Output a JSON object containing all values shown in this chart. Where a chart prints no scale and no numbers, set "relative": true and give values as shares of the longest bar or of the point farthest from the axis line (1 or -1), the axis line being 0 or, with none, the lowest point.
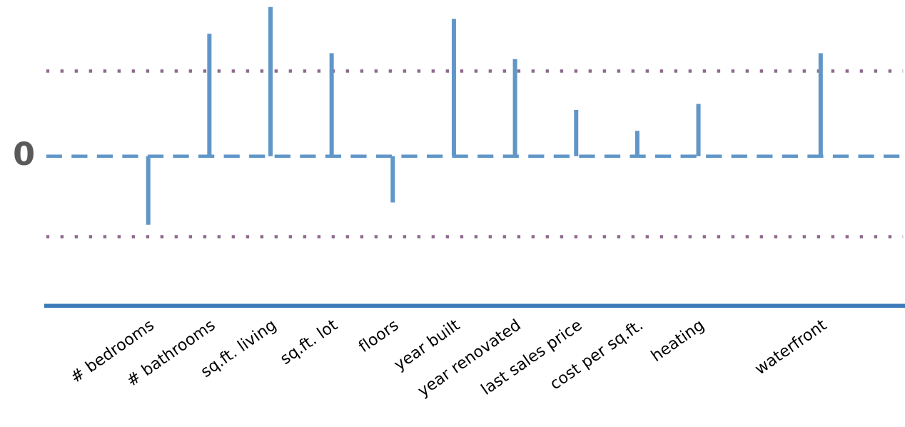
{
  "chart_data": {
    "type": "bar",
    "relative": true,
    "categories": [
      "# bedrooms",
      "# bathrooms",
      "sq.ft. living",
      "sq.ft. lot",
      "floors",
      "year built",
      "year renovated",
      "last sales price",
      "cost per sq.ft.",
      "heating",
      null,
      "waterfront"
    ],
    "values": [
      -0.46,
      0.82,
      1,
      0.69,
      -0.31,
      0.92,
      0.65,
      0.31,
      0.17,
      0.35,
      null,
      0.69
    ],
    "color": "#6096c8",
    "ref_lines": [
      {
        "axis": "y",
        "value": 0,
        "label": "0",
        "line_style": "dashed",
        "color": "#6096c8"
      },
      {
        "axis": "y",
        "value": 0.57,
        "label": null,
        "line_style": "dotted",
        "color": "#8e6a8e"
      },
      {
        "axis": "y",
        "value": -0.54,
        "label": null,
        "line_style": "dotted",
        "color": "#8e6a8e"
      }
    ],
    "grid": false,
    "legend": false
  }
}
